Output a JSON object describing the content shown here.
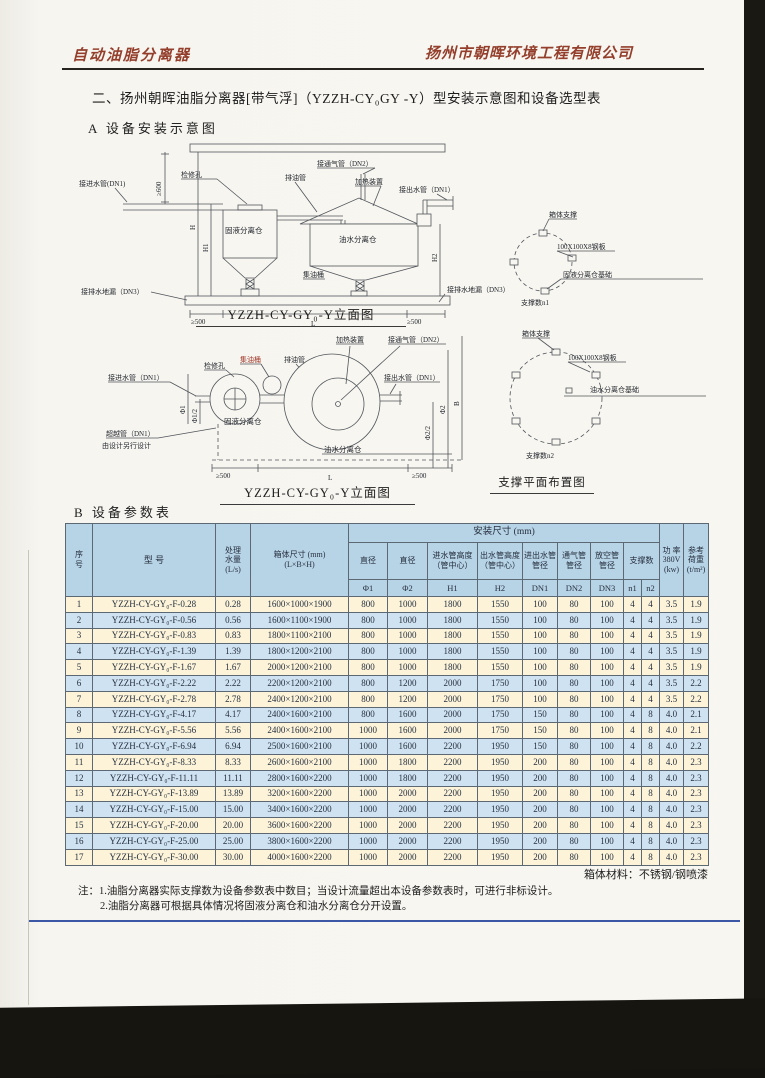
{
  "header": {
    "brand_left": "自动油脂分离器",
    "brand_right": "扬州市朝晖环境工程有限公司"
  },
  "title": "二、扬州朝晖油脂分离器[带气浮]（YZZH-CY₀GY -Y）型安装示意图和设备选型表",
  "section_a": {
    "heading": "A 设备安装示意图",
    "elevation": {
      "labels": {
        "dim600": "≥600",
        "inlet": "接进水管(DN1)",
        "access": "检修孔",
        "oilpipe": "排油管",
        "vent": "接通气管（DN2）",
        "heater": "加热装置",
        "outlet": "接出水管（DN1）",
        "solid_tank": "固液分离仓",
        "oil_tank": "油水分离仓",
        "barrel": "集油桶",
        "drain_left": "接排水地漏（DN3）",
        "drain_right": "接排水地漏（DN3）",
        "h": "H",
        "h1": "H1",
        "h2": "H2",
        "d500_left": "≥500",
        "length": "L",
        "d500_right": "≥500"
      },
      "caption": "YZZH-CY-GY₀-Y立面图"
    },
    "support1": {
      "labels": {
        "frame": "箱体支撑",
        "plate": "100X100X8钢板",
        "base": "固液分离仓基础",
        "count": "支撑数n1"
      }
    },
    "plan": {
      "labels": {
        "inlet": "接进水管（DN1）",
        "access": "检修孔",
        "barrel": "集油桶",
        "oilpipe": "排油管",
        "heater": "加热装置",
        "vent": "接通气管（DN2）",
        "outlet": "接出水管（DN1）",
        "bypass_line1": "超越管（DN1）",
        "bypass_line2": "由设计另行设计",
        "solid_tank": "固液分离仓",
        "oil_tank": "油水分离仓",
        "phi1": "Φ1",
        "phi1_half": "Φ1/2",
        "phi2": "Φ2",
        "phi2_half": "Φ2/2",
        "b": "B",
        "d500_left": "≥500",
        "length": "L",
        "d500_right": "≥500"
      },
      "caption": "YZZH-CY-GY₀-Y立面图"
    },
    "support2": {
      "labels": {
        "frame": "箱体支撑",
        "plate": "100X100X8钢板",
        "base": "油水分离仓基础",
        "count": "支撑数n2"
      },
      "caption": "支撑平面布置图"
    }
  },
  "section_b": {
    "heading": "B 设备参数表",
    "table": {
      "headers": {
        "no": "序\n号",
        "model": "型  号",
        "flow": "处理\n水量\n(L/s)",
        "box": "箱体尺寸 (mm)\n(L×B×H)",
        "install_group": "安装尺寸 (mm)",
        "dia1": "直径",
        "dia2": "直径",
        "inlet_h": "进水管高度\n（管中心）",
        "outlet_h": "出水管高度\n（管中心）",
        "inout_dn": "进出水管\n管径",
        "vent_dn": "通气管\n管径",
        "empty_dn": "放空管\n管径",
        "supports": "支撑数",
        "phi1": "Φ1",
        "phi2": "Φ2",
        "h1": "H1",
        "h2": "H2",
        "dn1": "DN1",
        "dn2": "DN2",
        "dn3": "DN3",
        "n1": "n1",
        "n2": "n2",
        "power": "功 率\n380V\n(kw)",
        "load": "参考\n荷重\n(t/m²)"
      },
      "rows": [
        {
          "no": "1",
          "model": "YZZH-CY-GY₀-F-0.28",
          "flow": "0.28",
          "box": "1600×1000×1900",
          "phi1": "800",
          "phi2": "1000",
          "h1": "1800",
          "h2": "1550",
          "dn1": "100",
          "dn2": "80",
          "dn3": "100",
          "n1": "4",
          "n2": "4",
          "power": "3.5",
          "load": "1.9"
        },
        {
          "no": "2",
          "model": "YZZH-CY-GY₀-F-0.56",
          "flow": "0.56",
          "box": "1600×1100×1900",
          "phi1": "800",
          "phi2": "1000",
          "h1": "1800",
          "h2": "1550",
          "dn1": "100",
          "dn2": "80",
          "dn3": "100",
          "n1": "4",
          "n2": "4",
          "power": "3.5",
          "load": "1.9"
        },
        {
          "no": "3",
          "model": "YZZH-CY-GY₀-F-0.83",
          "flow": "0.83",
          "box": "1800×1100×2100",
          "phi1": "800",
          "phi2": "1000",
          "h1": "1800",
          "h2": "1550",
          "dn1": "100",
          "dn2": "80",
          "dn3": "100",
          "n1": "4",
          "n2": "4",
          "power": "3.5",
          "load": "1.9"
        },
        {
          "no": "4",
          "model": "YZZH-CY-GY₀-F-1.39",
          "flow": "1.39",
          "box": "1800×1200×2100",
          "phi1": "800",
          "phi2": "1000",
          "h1": "1800",
          "h2": "1550",
          "dn1": "100",
          "dn2": "80",
          "dn3": "100",
          "n1": "4",
          "n2": "4",
          "power": "3.5",
          "load": "1.9"
        },
        {
          "no": "5",
          "model": "YZZH-CY-GY₀-F-1.67",
          "flow": "1.67",
          "box": "2000×1200×2100",
          "phi1": "800",
          "phi2": "1000",
          "h1": "1800",
          "h2": "1550",
          "dn1": "100",
          "dn2": "80",
          "dn3": "100",
          "n1": "4",
          "n2": "4",
          "power": "3.5",
          "load": "1.9"
        },
        {
          "no": "6",
          "model": "YZZH-CY-GY₀-F-2.22",
          "flow": "2.22",
          "box": "2200×1200×2100",
          "phi1": "800",
          "phi2": "1200",
          "h1": "2000",
          "h2": "1750",
          "dn1": "100",
          "dn2": "80",
          "dn3": "100",
          "n1": "4",
          "n2": "4",
          "power": "3.5",
          "load": "2.2"
        },
        {
          "no": "7",
          "model": "YZZH-CY-GY₀-F-2.78",
          "flow": "2.78",
          "box": "2400×1200×2100",
          "phi1": "800",
          "phi2": "1200",
          "h1": "2000",
          "h2": "1750",
          "dn1": "100",
          "dn2": "80",
          "dn3": "100",
          "n1": "4",
          "n2": "4",
          "power": "3.5",
          "load": "2.2"
        },
        {
          "no": "8",
          "model": "YZZH-CY-GY₀-F-4.17",
          "flow": "4.17",
          "box": "2400×1600×2100",
          "phi1": "800",
          "phi2": "1600",
          "h1": "2000",
          "h2": "1750",
          "dn1": "150",
          "dn2": "80",
          "dn3": "100",
          "n1": "4",
          "n2": "8",
          "power": "4.0",
          "load": "2.1"
        },
        {
          "no": "9",
          "model": "YZZH-CY-GY₀-F-5.56",
          "flow": "5.56",
          "box": "2400×1600×2100",
          "phi1": "1000",
          "phi2": "1600",
          "h1": "2000",
          "h2": "1750",
          "dn1": "150",
          "dn2": "80",
          "dn3": "100",
          "n1": "4",
          "n2": "8",
          "power": "4.0",
          "load": "2.1"
        },
        {
          "no": "10",
          "model": "YZZH-CY-GY₀-F-6.94",
          "flow": "6.94",
          "box": "2500×1600×2100",
          "phi1": "1000",
          "phi2": "1600",
          "h1": "2200",
          "h2": "1950",
          "dn1": "150",
          "dn2": "80",
          "dn3": "100",
          "n1": "4",
          "n2": "8",
          "power": "4.0",
          "load": "2.2"
        },
        {
          "no": "11",
          "model": "YZZH-CY-GY₀-F-8.33",
          "flow": "8.33",
          "box": "2600×1600×2100",
          "phi1": "1000",
          "phi2": "1800",
          "h1": "2200",
          "h2": "1950",
          "dn1": "200",
          "dn2": "80",
          "dn3": "100",
          "n1": "4",
          "n2": "8",
          "power": "4.0",
          "load": "2.3"
        },
        {
          "no": "12",
          "model": "YZZH-CY-GY₀-F-11.11",
          "flow": "11.11",
          "box": "2800×1600×2200",
          "phi1": "1000",
          "phi2": "1800",
          "h1": "2200",
          "h2": "1950",
          "dn1": "200",
          "dn2": "80",
          "dn3": "100",
          "n1": "4",
          "n2": "8",
          "power": "4.0",
          "load": "2.3"
        },
        {
          "no": "13",
          "model": "YZZH-CY-GY₀-F-13.89",
          "flow": "13.89",
          "box": "3200×1600×2200",
          "phi1": "1000",
          "phi2": "2000",
          "h1": "2200",
          "h2": "1950",
          "dn1": "200",
          "dn2": "80",
          "dn3": "100",
          "n1": "4",
          "n2": "8",
          "power": "4.0",
          "load": "2.3"
        },
        {
          "no": "14",
          "model": "YZZH-CY-GY₀-F-15.00",
          "flow": "15.00",
          "box": "3400×1600×2200",
          "phi1": "1000",
          "phi2": "2000",
          "h1": "2200",
          "h2": "1950",
          "dn1": "200",
          "dn2": "80",
          "dn3": "100",
          "n1": "4",
          "n2": "8",
          "power": "4.0",
          "load": "2.3"
        },
        {
          "no": "15",
          "model": "YZZH-CY-GY₀-F-20.00",
          "flow": "20.00",
          "box": "3600×1600×2200",
          "phi1": "1000",
          "phi2": "2000",
          "h1": "2200",
          "h2": "1950",
          "dn1": "200",
          "dn2": "80",
          "dn3": "100",
          "n1": "4",
          "n2": "8",
          "power": "4.0",
          "load": "2.3"
        },
        {
          "no": "16",
          "model": "YZZH-CY-GY₀-F-25.00",
          "flow": "25.00",
          "box": "3800×1600×2200",
          "phi1": "1000",
          "phi2": "2000",
          "h1": "2200",
          "h2": "1950",
          "dn1": "200",
          "dn2": "80",
          "dn3": "100",
          "n1": "4",
          "n2": "8",
          "power": "4.0",
          "load": "2.3"
        },
        {
          "no": "17",
          "model": "YZZH-CY-GY₀-F-30.00",
          "flow": "30.00",
          "box": "4000×1600×2200",
          "phi1": "1000",
          "phi2": "2000",
          "h1": "2200",
          "h2": "1950",
          "dn1": "200",
          "dn2": "80",
          "dn3": "100",
          "n1": "4",
          "n2": "8",
          "power": "4.0",
          "load": "2.3"
        }
      ],
      "material_note": "箱体材料：不锈钢/钢喷漆"
    }
  },
  "notes": {
    "prefix": "注：",
    "line1": "1.油脂分离器实际支撑数为设备参数表中数目；当设计流量超出本设备参数表时，可进行非标设计。",
    "line2": "2.油脂分离器可根据具体情况将固液分离仓和油水分离仓分开设置。"
  },
  "colors": {
    "accent_red": "#943f2c",
    "table_header_blue": "#b7d3e6",
    "row_blue": "#cfe2f1",
    "row_cream": "#fcf3d9",
    "rule_blue": "#3b57a6"
  }
}
